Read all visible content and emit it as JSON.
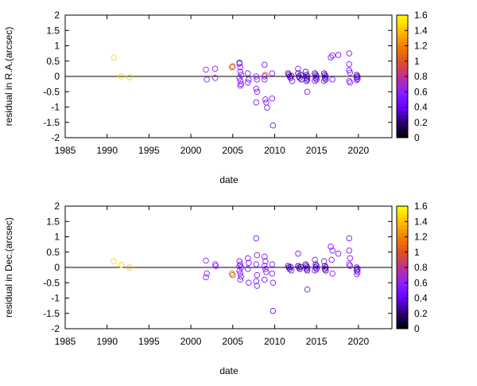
{
  "chart_data": [
    {
      "type": "scatter",
      "xlabel": "date",
      "ylabel": "residual in R.A.(arcsec)",
      "xlim": [
        1985,
        2024
      ],
      "ylim": [
        -2,
        2
      ],
      "x_ticks": [
        "1985",
        "1990",
        "1995",
        "2000",
        "2005",
        "2010",
        "2015",
        "2020"
      ],
      "y_ticks": [
        "-2",
        "-1.5",
        "-1",
        "-0.5",
        "0",
        "0.5",
        "1",
        "1.5",
        "2"
      ],
      "grid": false,
      "zero_line": true,
      "marker": "open-circle",
      "colorbar": {
        "range": [
          0,
          1.6
        ],
        "ticks": [
          "0",
          "0.2",
          "0.4",
          "0.6",
          "0.8",
          "1",
          "1.2",
          "1.4",
          "1.6"
        ],
        "colormap": [
          "#000000",
          "#2a0070",
          "#6a00ff",
          "#8a20ff",
          "#c03090",
          "#e0501c",
          "#f08000",
          "#ffc000",
          "#ffff00"
        ]
      },
      "points": [
        {
          "x": 1990.8,
          "y": 0.62,
          "c": 1.5
        },
        {
          "x": 1991.7,
          "y": 0.0,
          "c": 1.45
        },
        {
          "x": 1992.7,
          "y": -0.03,
          "c": 1.45
        },
        {
          "x": 2001.8,
          "y": 0.22,
          "c": 0.6
        },
        {
          "x": 2001.9,
          "y": -0.1,
          "c": 0.6
        },
        {
          "x": 2002.9,
          "y": 0.25,
          "c": 0.6
        },
        {
          "x": 2002.9,
          "y": -0.05,
          "c": 0.6
        },
        {
          "x": 2004.9,
          "y": 0.3,
          "c": 1.1
        },
        {
          "x": 2005.0,
          "y": 0.33,
          "c": 1.0
        },
        {
          "x": 2005.8,
          "y": 0.42,
          "c": 0.55
        },
        {
          "x": 2005.9,
          "y": 0.3,
          "c": 0.55
        },
        {
          "x": 2005.9,
          "y": 0.15,
          "c": 0.55
        },
        {
          "x": 2006.0,
          "y": 0.05,
          "c": 0.55
        },
        {
          "x": 2005.8,
          "y": -0.05,
          "c": 0.55
        },
        {
          "x": 2005.9,
          "y": -0.15,
          "c": 0.55
        },
        {
          "x": 2006.0,
          "y": -0.25,
          "c": 0.55
        },
        {
          "x": 2005.9,
          "y": -0.3,
          "c": 0.55
        },
        {
          "x": 2005.8,
          "y": 0.45,
          "c": 0.55
        },
        {
          "x": 2006.8,
          "y": 0.1,
          "c": 0.55
        },
        {
          "x": 2006.9,
          "y": -0.1,
          "c": 0.55
        },
        {
          "x": 2006.8,
          "y": -0.2,
          "c": 0.55
        },
        {
          "x": 2007.8,
          "y": 0.0,
          "c": 0.55
        },
        {
          "x": 2007.9,
          "y": -0.1,
          "c": 0.55
        },
        {
          "x": 2007.8,
          "y": -0.4,
          "c": 0.55
        },
        {
          "x": 2007.9,
          "y": -0.5,
          "c": 0.55
        },
        {
          "x": 2007.8,
          "y": -0.85,
          "c": 0.55
        },
        {
          "x": 2008.8,
          "y": 0.38,
          "c": 0.55
        },
        {
          "x": 2008.8,
          "y": 0.0,
          "c": 0.55
        },
        {
          "x": 2008.9,
          "y": 0.05,
          "c": 1.0
        },
        {
          "x": 2008.8,
          "y": -0.1,
          "c": 0.55
        },
        {
          "x": 2008.9,
          "y": -0.75,
          "c": 0.55
        },
        {
          "x": 2009.0,
          "y": -0.85,
          "c": 0.55
        },
        {
          "x": 2009.1,
          "y": -1.02,
          "c": 0.55
        },
        {
          "x": 2009.7,
          "y": 0.1,
          "c": 0.55
        },
        {
          "x": 2009.7,
          "y": -0.72,
          "c": 0.55
        },
        {
          "x": 2009.8,
          "y": -1.6,
          "c": 0.55
        },
        {
          "x": 2011.6,
          "y": 0.1,
          "c": 0.3
        },
        {
          "x": 2011.7,
          "y": 0.05,
          "c": 0.3
        },
        {
          "x": 2011.8,
          "y": 0.0,
          "c": 0.3
        },
        {
          "x": 2011.9,
          "y": -0.05,
          "c": 0.3
        },
        {
          "x": 2012.0,
          "y": 0.02,
          "c": 0.3
        },
        {
          "x": 2012.1,
          "y": -0.15,
          "c": 0.5
        },
        {
          "x": 2012.8,
          "y": 0.25,
          "c": 0.55
        },
        {
          "x": 2012.8,
          "y": 0.1,
          "c": 0.3
        },
        {
          "x": 2012.9,
          "y": 0.0,
          "c": 0.3
        },
        {
          "x": 2013.0,
          "y": -0.05,
          "c": 0.3
        },
        {
          "x": 2013.1,
          "y": 0.05,
          "c": 0.3
        },
        {
          "x": 2013.2,
          "y": -0.1,
          "c": 0.3
        },
        {
          "x": 2013.7,
          "y": 0.15,
          "c": 0.3
        },
        {
          "x": 2013.8,
          "y": 0.05,
          "c": 0.3
        },
        {
          "x": 2013.9,
          "y": 0.0,
          "c": 0.3
        },
        {
          "x": 2013.8,
          "y": -0.05,
          "c": 0.3
        },
        {
          "x": 2013.9,
          "y": -0.1,
          "c": 0.3
        },
        {
          "x": 2013.8,
          "y": -0.15,
          "c": 0.3
        },
        {
          "x": 2013.9,
          "y": -0.5,
          "c": 0.55
        },
        {
          "x": 2014.8,
          "y": 0.1,
          "c": 0.3
        },
        {
          "x": 2014.9,
          "y": 0.05,
          "c": 0.3
        },
        {
          "x": 2015.0,
          "y": 0.0,
          "c": 0.3
        },
        {
          "x": 2014.9,
          "y": -0.05,
          "c": 0.3
        },
        {
          "x": 2015.0,
          "y": -0.1,
          "c": 0.3
        },
        {
          "x": 2014.8,
          "y": -0.15,
          "c": 0.5
        },
        {
          "x": 2015.9,
          "y": 0.1,
          "c": 0.3
        },
        {
          "x": 2016.0,
          "y": 0.05,
          "c": 0.3
        },
        {
          "x": 2016.1,
          "y": 0.0,
          "c": 0.3
        },
        {
          "x": 2016.0,
          "y": -0.05,
          "c": 0.3
        },
        {
          "x": 2016.1,
          "y": -0.1,
          "c": 0.3
        },
        {
          "x": 2015.9,
          "y": -0.15,
          "c": 0.55
        },
        {
          "x": 2016.7,
          "y": 0.62,
          "c": 0.55
        },
        {
          "x": 2016.9,
          "y": 0.68,
          "c": 0.55
        },
        {
          "x": 2016.9,
          "y": -0.1,
          "c": 0.55
        },
        {
          "x": 2017.6,
          "y": 0.7,
          "c": 0.55
        },
        {
          "x": 2018.9,
          "y": 0.75,
          "c": 0.55
        },
        {
          "x": 2018.9,
          "y": 0.4,
          "c": 0.55
        },
        {
          "x": 2018.9,
          "y": 0.2,
          "c": 0.55
        },
        {
          "x": 2019.0,
          "y": 0.12,
          "c": 0.55
        },
        {
          "x": 2018.9,
          "y": -0.15,
          "c": 0.55
        },
        {
          "x": 2019.0,
          "y": -0.2,
          "c": 0.55
        },
        {
          "x": 2019.8,
          "y": 0.05,
          "c": 0.3
        },
        {
          "x": 2019.9,
          "y": 0.0,
          "c": 0.3
        },
        {
          "x": 2019.8,
          "y": -0.03,
          "c": 0.3
        },
        {
          "x": 2019.9,
          "y": -0.08,
          "c": 0.3
        },
        {
          "x": 2019.8,
          "y": -0.12,
          "c": 0.5
        }
      ]
    },
    {
      "type": "scatter",
      "xlabel": "date",
      "ylabel": "residual in Dec.(arcsec)",
      "xlim": [
        1985,
        2024
      ],
      "ylim": [
        -2,
        2
      ],
      "x_ticks": [
        "1985",
        "1990",
        "1995",
        "2000",
        "2005",
        "2010",
        "2015",
        "2020"
      ],
      "y_ticks": [
        "-2",
        "-1.5",
        "-1",
        "-0.5",
        "0",
        "0.5",
        "1",
        "1.5",
        "2"
      ],
      "grid": false,
      "zero_line": true,
      "marker": "open-circle",
      "colorbar": {
        "range": [
          0,
          1.6
        ],
        "ticks": [
          "0",
          "0.2",
          "0.4",
          "0.6",
          "0.8",
          "1",
          "1.2",
          "1.4",
          "1.6"
        ],
        "colormap": [
          "#000000",
          "#2a0070",
          "#6a00ff",
          "#8a20ff",
          "#c03090",
          "#e0501c",
          "#f08000",
          "#ffc000",
          "#ffff00"
        ]
      },
      "points": [
        {
          "x": 1990.8,
          "y": 0.2,
          "c": 1.5
        },
        {
          "x": 1991.7,
          "y": 0.08,
          "c": 1.45
        },
        {
          "x": 1992.7,
          "y": 0.0,
          "c": 1.45
        },
        {
          "x": 2001.8,
          "y": 0.22,
          "c": 0.6
        },
        {
          "x": 2001.9,
          "y": -0.2,
          "c": 0.6
        },
        {
          "x": 2001.8,
          "y": -0.32,
          "c": 0.6
        },
        {
          "x": 2002.9,
          "y": 0.1,
          "c": 0.6
        },
        {
          "x": 2003.0,
          "y": 0.05,
          "c": 0.6
        },
        {
          "x": 2004.9,
          "y": -0.2,
          "c": 1.1
        },
        {
          "x": 2005.0,
          "y": -0.25,
          "c": 1.0
        },
        {
          "x": 2005.8,
          "y": 0.2,
          "c": 0.55
        },
        {
          "x": 2005.9,
          "y": 0.1,
          "c": 0.55
        },
        {
          "x": 2006.0,
          "y": 0.0,
          "c": 0.55
        },
        {
          "x": 2005.8,
          "y": -0.1,
          "c": 0.55
        },
        {
          "x": 2005.9,
          "y": -0.2,
          "c": 0.55
        },
        {
          "x": 2006.0,
          "y": -0.3,
          "c": 0.55
        },
        {
          "x": 2005.9,
          "y": -0.4,
          "c": 0.55
        },
        {
          "x": 2005.8,
          "y": 0.05,
          "c": 0.55
        },
        {
          "x": 2006.8,
          "y": 0.3,
          "c": 0.55
        },
        {
          "x": 2006.9,
          "y": 0.15,
          "c": 0.55
        },
        {
          "x": 2006.8,
          "y": -0.05,
          "c": 0.55
        },
        {
          "x": 2006.9,
          "y": -0.5,
          "c": 0.55
        },
        {
          "x": 2007.8,
          "y": 0.95,
          "c": 0.55
        },
        {
          "x": 2007.9,
          "y": 0.4,
          "c": 0.55
        },
        {
          "x": 2007.8,
          "y": 0.1,
          "c": 0.55
        },
        {
          "x": 2007.9,
          "y": -0.25,
          "c": 0.55
        },
        {
          "x": 2007.8,
          "y": -0.45,
          "c": 0.55
        },
        {
          "x": 2007.9,
          "y": -0.6,
          "c": 0.55
        },
        {
          "x": 2008.8,
          "y": 0.35,
          "c": 0.55
        },
        {
          "x": 2008.9,
          "y": 0.2,
          "c": 0.55
        },
        {
          "x": 2008.8,
          "y": 0.05,
          "c": 0.55
        },
        {
          "x": 2008.9,
          "y": -0.05,
          "c": 0.55
        },
        {
          "x": 2009.0,
          "y": -0.15,
          "c": 0.55
        },
        {
          "x": 2008.8,
          "y": -0.4,
          "c": 0.55
        },
        {
          "x": 2009.7,
          "y": 0.1,
          "c": 0.55
        },
        {
          "x": 2009.7,
          "y": -0.2,
          "c": 0.55
        },
        {
          "x": 2009.8,
          "y": -0.5,
          "c": 0.55
        },
        {
          "x": 2009.8,
          "y": -1.42,
          "c": 0.55
        },
        {
          "x": 2011.6,
          "y": 0.05,
          "c": 0.3
        },
        {
          "x": 2011.7,
          "y": 0.0,
          "c": 0.3
        },
        {
          "x": 2011.8,
          "y": -0.05,
          "c": 0.3
        },
        {
          "x": 2011.9,
          "y": 0.02,
          "c": 0.3
        },
        {
          "x": 2012.0,
          "y": -0.1,
          "c": 0.5
        },
        {
          "x": 2012.8,
          "y": 0.45,
          "c": 0.55
        },
        {
          "x": 2012.8,
          "y": 0.05,
          "c": 0.3
        },
        {
          "x": 2012.9,
          "y": 0.0,
          "c": 0.3
        },
        {
          "x": 2013.0,
          "y": -0.05,
          "c": 0.3
        },
        {
          "x": 2013.1,
          "y": 0.02,
          "c": 0.3
        },
        {
          "x": 2013.7,
          "y": 0.1,
          "c": 0.3
        },
        {
          "x": 2013.8,
          "y": 0.05,
          "c": 0.3
        },
        {
          "x": 2013.9,
          "y": 0.0,
          "c": 0.3
        },
        {
          "x": 2013.8,
          "y": -0.05,
          "c": 0.3
        },
        {
          "x": 2013.9,
          "y": -0.1,
          "c": 0.3
        },
        {
          "x": 2013.9,
          "y": -0.72,
          "c": 0.55
        },
        {
          "x": 2014.8,
          "y": 0.25,
          "c": 0.55
        },
        {
          "x": 2014.9,
          "y": 0.1,
          "c": 0.3
        },
        {
          "x": 2015.0,
          "y": 0.05,
          "c": 0.3
        },
        {
          "x": 2014.9,
          "y": 0.0,
          "c": 0.3
        },
        {
          "x": 2015.0,
          "y": -0.05,
          "c": 0.3
        },
        {
          "x": 2014.8,
          "y": -0.1,
          "c": 0.5
        },
        {
          "x": 2015.9,
          "y": 0.2,
          "c": 0.55
        },
        {
          "x": 2016.0,
          "y": 0.05,
          "c": 0.3
        },
        {
          "x": 2016.1,
          "y": 0.0,
          "c": 0.3
        },
        {
          "x": 2016.0,
          "y": -0.05,
          "c": 0.3
        },
        {
          "x": 2016.1,
          "y": -0.1,
          "c": 0.3
        },
        {
          "x": 2016.7,
          "y": 0.68,
          "c": 0.55
        },
        {
          "x": 2016.9,
          "y": 0.55,
          "c": 0.55
        },
        {
          "x": 2016.8,
          "y": 0.25,
          "c": 0.55
        },
        {
          "x": 2016.9,
          "y": -0.2,
          "c": 0.55
        },
        {
          "x": 2017.6,
          "y": 0.45,
          "c": 0.55
        },
        {
          "x": 2018.9,
          "y": 0.95,
          "c": 0.55
        },
        {
          "x": 2018.9,
          "y": 0.55,
          "c": 0.55
        },
        {
          "x": 2019.0,
          "y": 0.3,
          "c": 0.55
        },
        {
          "x": 2018.9,
          "y": 0.1,
          "c": 0.55
        },
        {
          "x": 2019.0,
          "y": 0.05,
          "c": 0.55
        },
        {
          "x": 2019.8,
          "y": 0.0,
          "c": 0.3
        },
        {
          "x": 2019.9,
          "y": -0.05,
          "c": 0.3
        },
        {
          "x": 2019.8,
          "y": -0.1,
          "c": 0.3
        },
        {
          "x": 2019.9,
          "y": -0.15,
          "c": 0.5
        },
        {
          "x": 2019.8,
          "y": -0.22,
          "c": 0.55
        }
      ]
    }
  ]
}
